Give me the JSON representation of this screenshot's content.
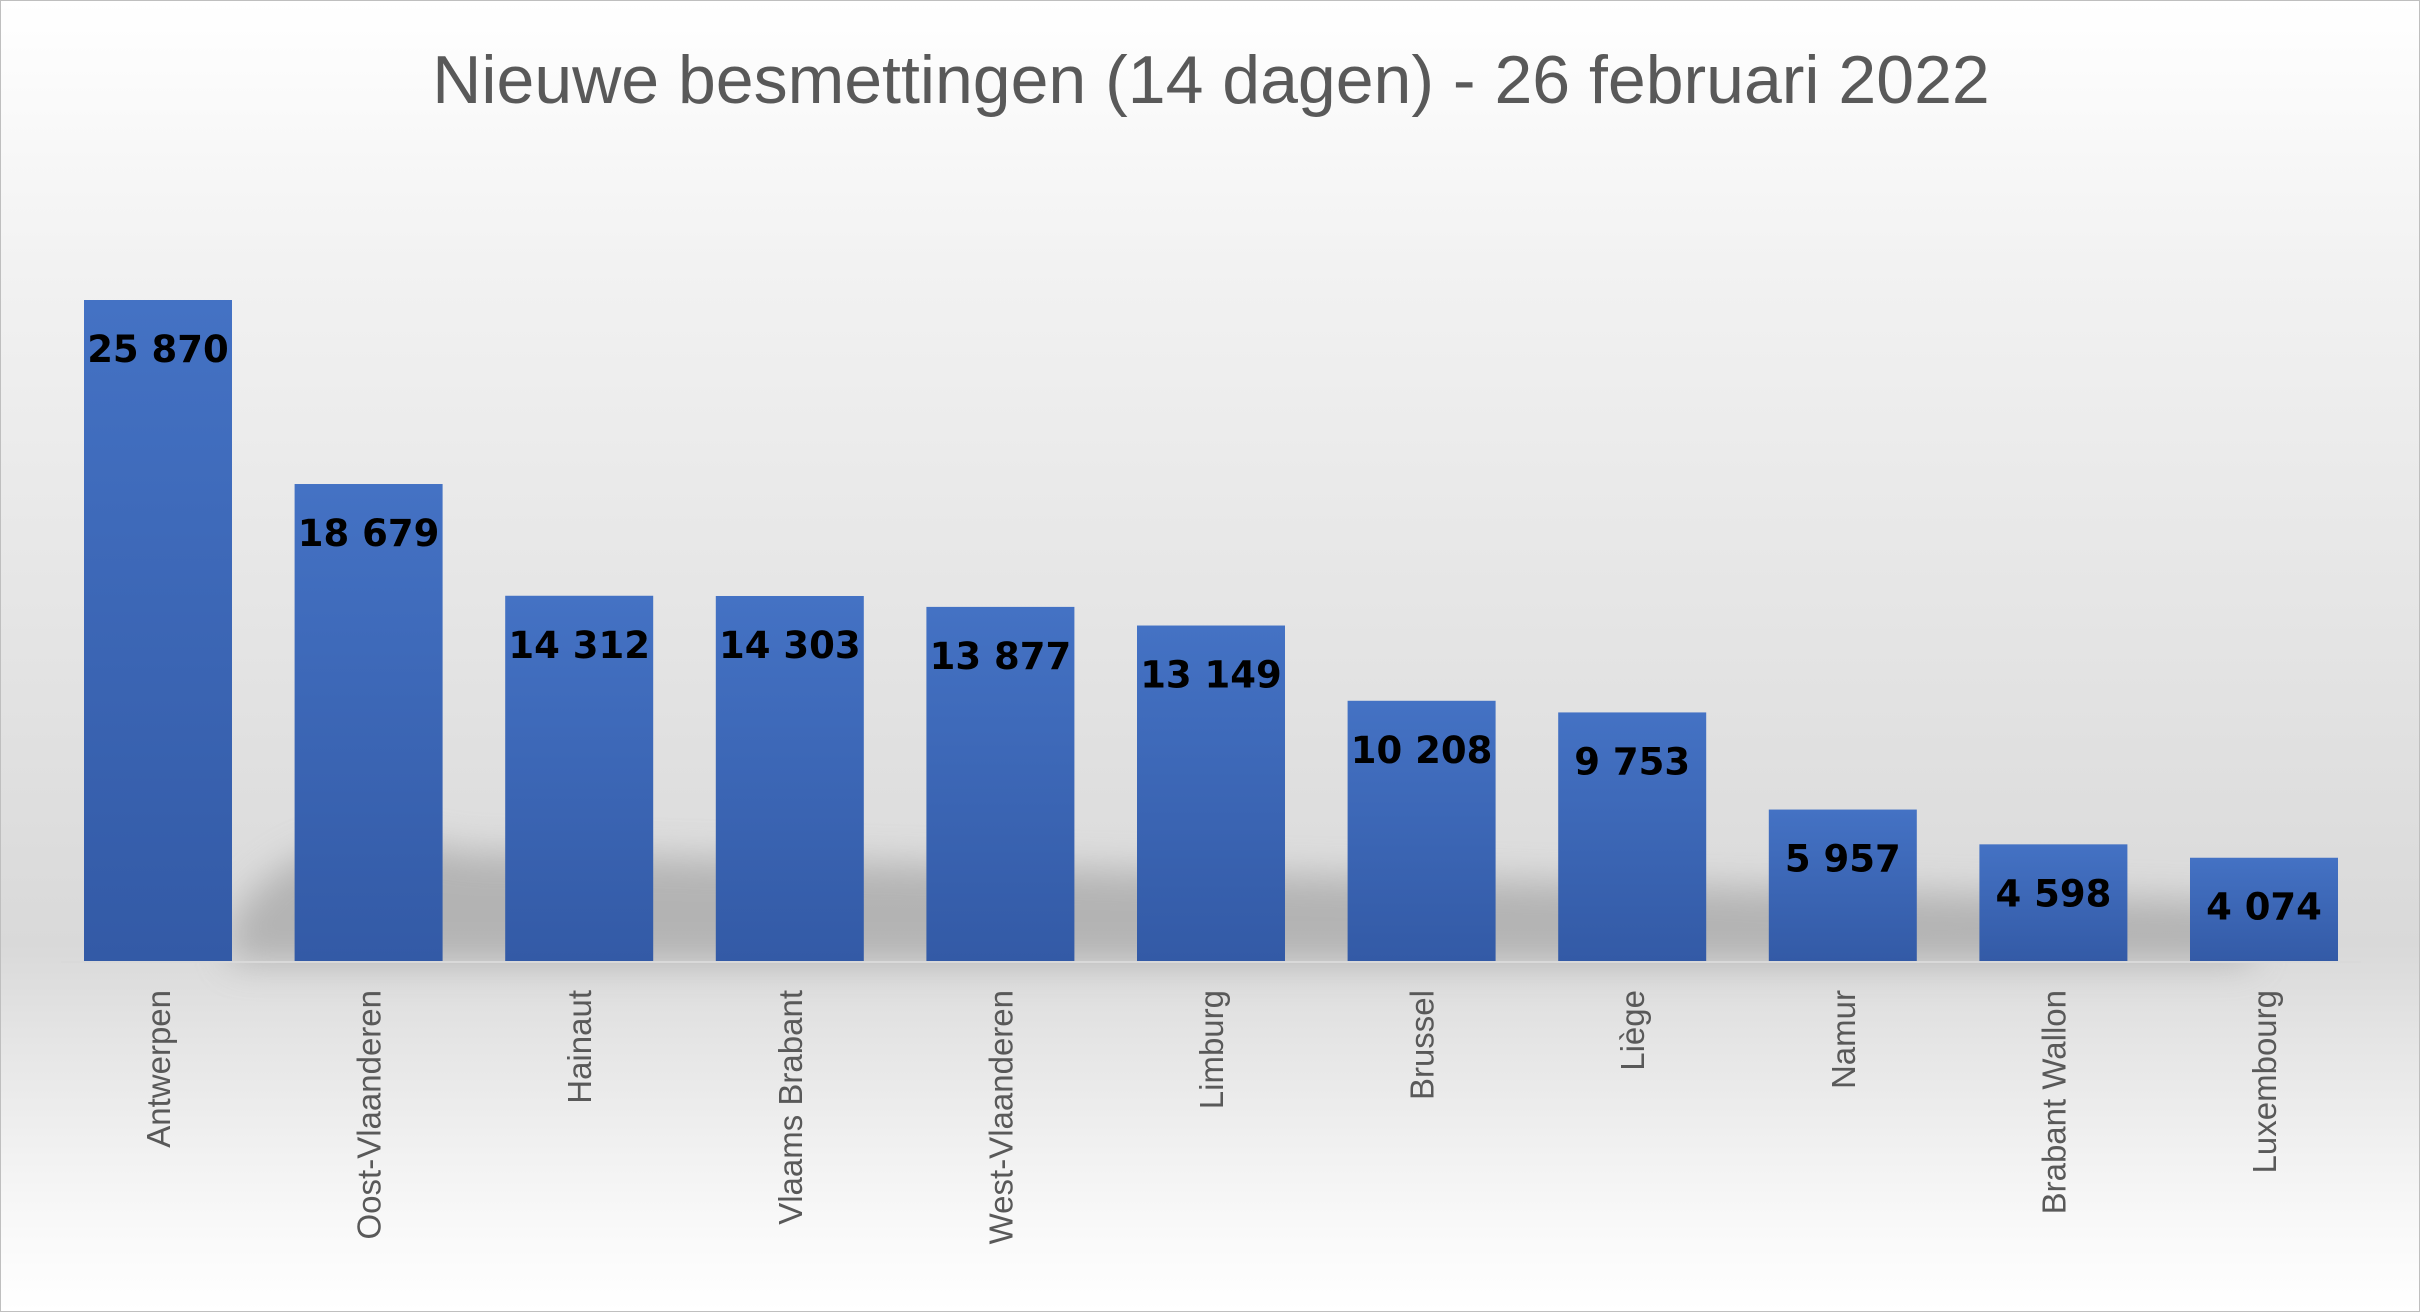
{
  "chart_data": {
    "type": "bar",
    "title": "Nieuwe besmettingen (14 dagen) - 26 februari 2022",
    "categories": [
      "Antwerpen",
      "Oost-Vlaanderen",
      "Hainaut",
      "Vlaams Brabant",
      "West-Vlaanderen",
      "Limburg",
      "Brussel",
      "Liège",
      "Namur",
      "Brabant Wallon",
      "Luxembourg"
    ],
    "values": [
      25870,
      18679,
      14312,
      14303,
      13877,
      13149,
      10208,
      9753,
      5957,
      4598,
      4074
    ],
    "value_labels": [
      "25 870",
      "18 679",
      "14 312",
      "14 303",
      "13 877",
      "13 149",
      "10 208",
      "9 753",
      "5 957",
      "4 598",
      "4 074"
    ],
    "xlabel": "",
    "ylabel": "",
    "ylim": [
      0,
      25870
    ],
    "grid": false,
    "legend": "none",
    "bar_color_top": "#4472c4",
    "bar_color_bottom": "#335aa6"
  }
}
